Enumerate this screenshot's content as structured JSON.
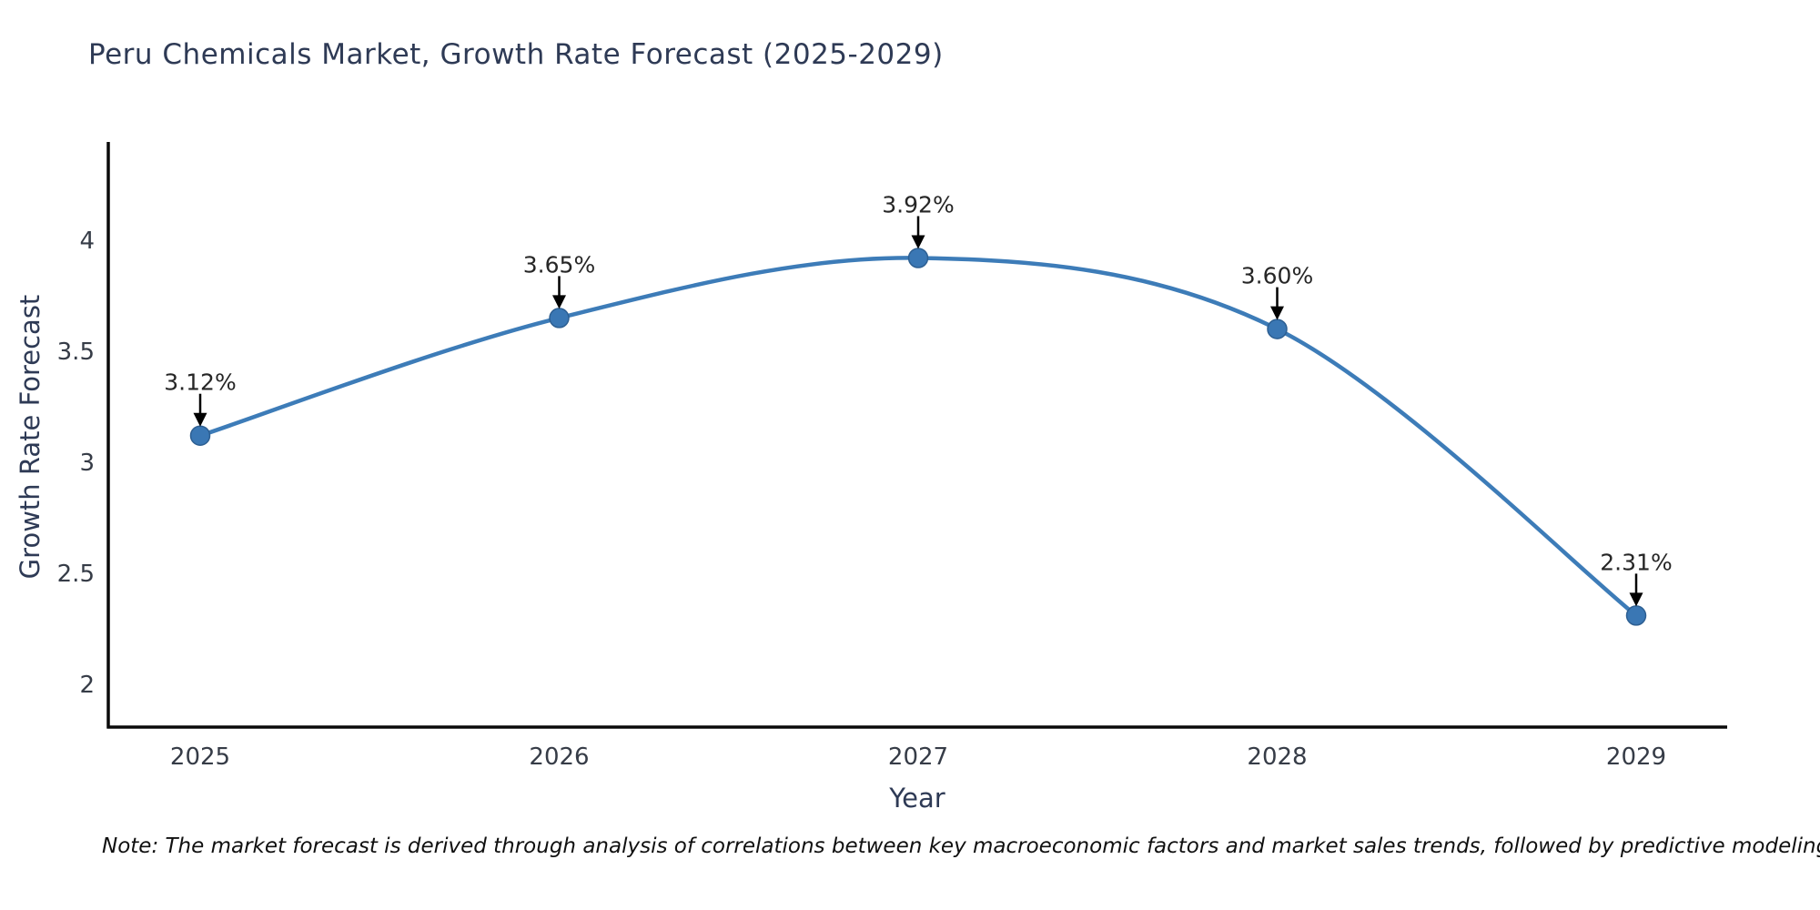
{
  "title": "Peru Chemicals Market, Growth Rate Forecast (2025-2029)",
  "footnote": "Note: The market forecast is derived through analysis of correlations between key macroeconomic factors and market sales trends, followed by predictive modeling to project future sales",
  "chart_data": {
    "type": "line",
    "title": "Peru Chemicals Market, Growth Rate Forecast (2025-2029)",
    "xlabel": "Year",
    "ylabel": "Growth Rate Forecast",
    "categories": [
      "2025",
      "2026",
      "2027",
      "2028",
      "2029"
    ],
    "series": [
      {
        "name": "Growth Rate Forecast",
        "values": [
          3.12,
          3.65,
          3.92,
          3.6,
          2.31
        ]
      }
    ],
    "point_labels": [
      "3.12%",
      "3.65%",
      "3.92%",
      "3.60%",
      "2.31%"
    ],
    "y_ticks": [
      2,
      2.5,
      3,
      3.5,
      4
    ],
    "y_tick_labels": [
      "2",
      "2.5",
      "3",
      "3.5",
      "4"
    ],
    "ylim": [
      1.8,
      4.46
    ],
    "grid": false,
    "legend": false,
    "curve": "smooth-spline",
    "annotation_style": "down-arrow-to-point"
  },
  "colors": {
    "background": "#ffffff",
    "line": "#3d7cb8",
    "marker_fill": "#3a77b4",
    "marker_edge": "#2d5f92",
    "spine": "#0a0a0a",
    "title": "#2e3a55",
    "axis_label": "#2e3a55",
    "tick_label": "#363c47",
    "annotation": "#262626",
    "arrow": "#000000",
    "note": "#101010"
  }
}
